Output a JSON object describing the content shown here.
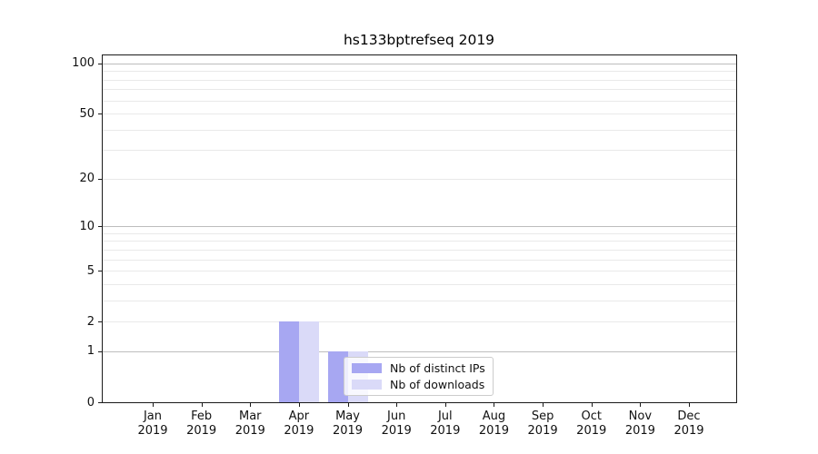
{
  "chart_data": {
    "type": "bar",
    "title": "hs133bptrefseq 2019",
    "categories": [
      "Jan 2019",
      "Feb 2019",
      "Mar 2019",
      "Apr 2019",
      "May 2019",
      "Jun 2019",
      "Jul 2019",
      "Aug 2019",
      "Sep 2019",
      "Oct 2019",
      "Nov 2019",
      "Dec 2019"
    ],
    "series": [
      {
        "name": "Nb of distinct IPs",
        "color": "#a7a7f2",
        "values": [
          0,
          0,
          0,
          2,
          1,
          0,
          0,
          0,
          0,
          0,
          0,
          0
        ]
      },
      {
        "name": "Nb of downloads",
        "color": "#dadaf8",
        "values": [
          0,
          0,
          0,
          2,
          1,
          0,
          0,
          0,
          0,
          0,
          0,
          0
        ]
      }
    ],
    "yscale": "log1p",
    "ylim": [
      0,
      113
    ],
    "y_ticks": [
      0,
      1,
      2,
      5,
      10,
      20,
      50,
      100
    ],
    "grid_major": [
      1,
      10,
      100
    ],
    "grid_minor": [
      2,
      3,
      4,
      5,
      6,
      7,
      8,
      9,
      20,
      30,
      40,
      50,
      60,
      70,
      80,
      90
    ],
    "grid_on": true,
    "legend_position": "lower center",
    "colors": {
      "axis": "#1a1a1a",
      "grid_major": "#bdbdbd",
      "grid_minor": "#e9e9e9",
      "legend_border": "#cccccc"
    }
  }
}
